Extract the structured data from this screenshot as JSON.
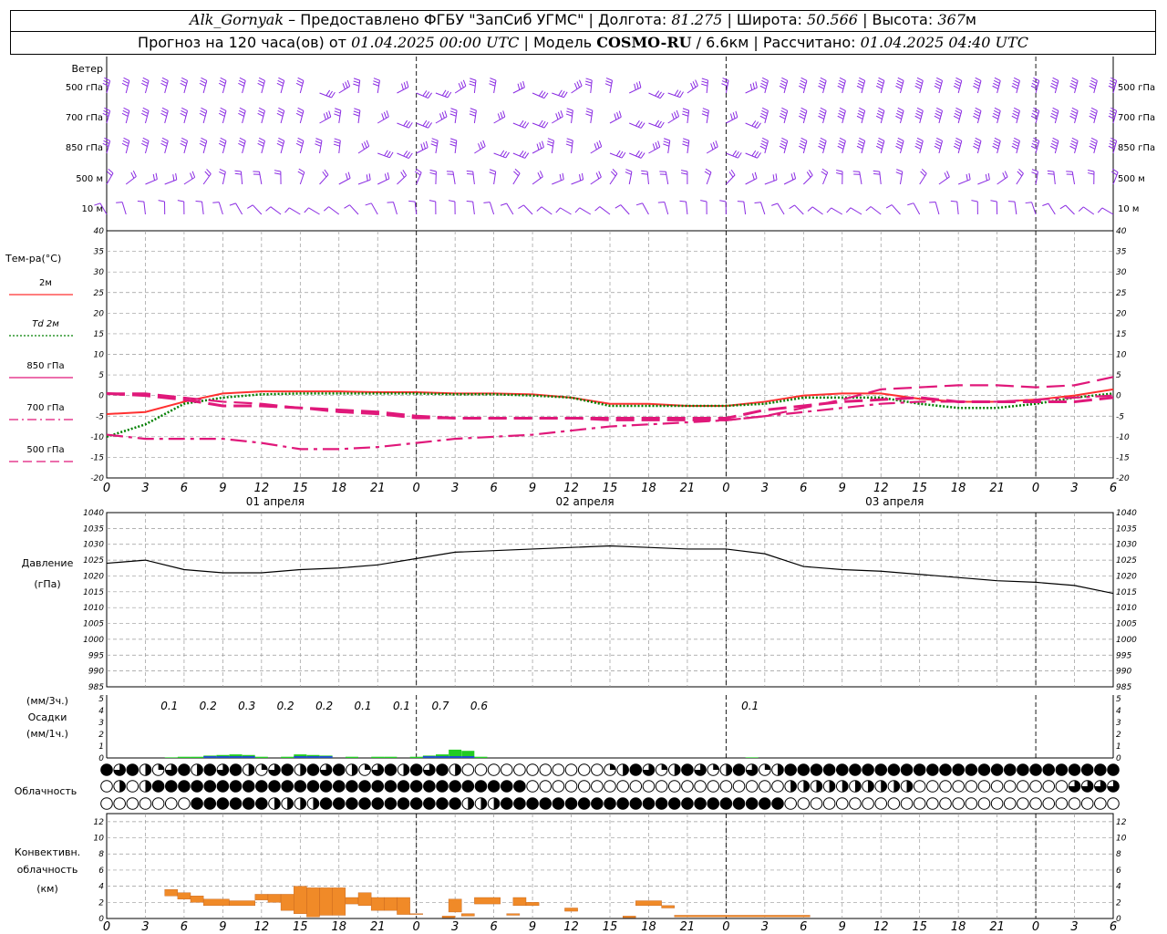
{
  "header": {
    "station": "Alk_Gornyak",
    "provider": "– Предоставлено ФГБУ \"ЗапСиб УГМС\" |",
    "lon_label": "Долгота:",
    "lon": "81.275",
    "lat_label": "| Широта:",
    "lat": "50.566",
    "alt_label": "| Высота:",
    "alt": "367",
    "alt_unit": "м",
    "forecast_label": "Прогноз на 120 часа(ов) от",
    "start_time": "01.04.2025 00:00 UTC",
    "model_label": "| Модель",
    "model": "COSMO-RU",
    "resolution": "/ 6.6км",
    "calc_label": "| Рассчитано:",
    "calc_time": "01.04.2025 04:40 UTC"
  },
  "wind_panel": {
    "title": "Ветер",
    "levels": [
      "500 гПа",
      "700 гПа",
      "850 гПа",
      "500 м",
      "10 м"
    ],
    "barb_color": "#8a2be2"
  },
  "hour_ticks": [
    "0",
    "3",
    "6",
    "9",
    "12",
    "15",
    "18",
    "21",
    "0",
    "3",
    "6",
    "9",
    "12",
    "15",
    "18",
    "21",
    "0",
    "3",
    "6",
    "9",
    "12",
    "15",
    "18",
    "21",
    "0",
    "3",
    "6"
  ],
  "dates": [
    "01 апреля",
    "02 апреля",
    "03 апреля"
  ],
  "temp_panel": {
    "title": "Тем-ра(°С)",
    "legend": [
      {
        "label": "2м",
        "color": "#ff3030",
        "style": "solid"
      },
      {
        "label": "Td 2м",
        "color": "#008000",
        "style": "dotted"
      },
      {
        "label": "850 гПа",
        "color": "#e0187a",
        "style": "solid"
      },
      {
        "label": "700 гПа",
        "color": "#e0187a",
        "style": "dashdot"
      },
      {
        "label": "500 гПа",
        "color": "#e0187a",
        "style": "dashed"
      }
    ],
    "y_ticks": [
      "40",
      "35",
      "30",
      "25",
      "20",
      "15",
      "10",
      "5",
      "0",
      "-5",
      "-10",
      "-15",
      "-20"
    ]
  },
  "pressure_panel": {
    "title": "Давление",
    "unit": "(гПа)",
    "y_ticks": [
      "1040",
      "1035",
      "1030",
      "1025",
      "1020",
      "1015",
      "1010",
      "1005",
      "1000",
      "995",
      "990",
      "985"
    ]
  },
  "precip_panel": {
    "unit3": "(мм/3ч.)",
    "title": "Осадки",
    "unit1": "(мм/1ч.)",
    "y_ticks": [
      "5",
      "4",
      "3",
      "2",
      "1",
      "0"
    ],
    "amounts": [
      {
        "label": "0.1",
        "hour": 5
      },
      {
        "label": "0.2",
        "hour": 8
      },
      {
        "label": "0.3",
        "hour": 11
      },
      {
        "label": "0.2",
        "hour": 14
      },
      {
        "label": "0.2",
        "hour": 17
      },
      {
        "label": "0.1",
        "hour": 20
      },
      {
        "label": "0.1",
        "hour": 23
      },
      {
        "label": "0.7",
        "hour": 26
      },
      {
        "label": "0.6",
        "hour": 29
      },
      {
        "label": "0.1",
        "hour": 50
      }
    ]
  },
  "cloud_panel": {
    "title": "Облачность"
  },
  "conv_panel": {
    "title1": "Конвективн.",
    "title2": "облачность",
    "unit": "(км)",
    "y_ticks": [
      "12",
      "10",
      "8",
      "6",
      "4",
      "2",
      "0"
    ],
    "bar_color": "#f08a28"
  },
  "chart_data": [
    {
      "type": "line",
      "title": "Тем-ра(°С)",
      "ylim": [
        -20,
        40
      ],
      "x_unit": "hours since 01.04.2025 00:00 UTC",
      "x": [
        0,
        3,
        6,
        9,
        12,
        15,
        18,
        21,
        24,
        27,
        30,
        33,
        36,
        39,
        42,
        45,
        48,
        51,
        54,
        57,
        60,
        63,
        66,
        69,
        72,
        75,
        78
      ],
      "series": [
        {
          "name": "2м",
          "values": [
            -4.5,
            -4,
            -1.5,
            0.5,
            1,
            1,
            1,
            0.8,
            0.8,
            0.5,
            0.5,
            0.3,
            -0.5,
            -2,
            -2,
            -2.5,
            -2.5,
            -1.5,
            0,
            0.5,
            0.5,
            -0.8,
            -1.5,
            -1.5,
            -1,
            0,
            1.5
          ]
        },
        {
          "name": "Td 2м",
          "values": [
            -10,
            -7,
            -2,
            -0.5,
            0.3,
            0.5,
            0.5,
            0.5,
            0.5,
            0.3,
            0.3,
            0,
            -0.5,
            -2.5,
            -2.5,
            -2.5,
            -2.5,
            -2,
            -0.5,
            -0.5,
            -0.5,
            -2,
            -3,
            -3,
            -2,
            -0.5,
            0.5
          ]
        },
        {
          "name": "850 гПа",
          "values": [
            0.5,
            0,
            -1,
            -2.5,
            -2.5,
            -3,
            -3.5,
            -4,
            -5,
            -5.5,
            -5.5,
            -5.5,
            -5.5,
            -5.5,
            -5.5,
            -5.5,
            -5.5,
            -3.5,
            -2.5,
            -1.5,
            -1,
            -0.5,
            -1.5,
            -1.5,
            -1.5,
            -1.5,
            -0.5
          ]
        },
        {
          "name": "700 гПа",
          "values": [
            -9.5,
            -10.5,
            -10.5,
            -10.5,
            -11.5,
            -13,
            -13,
            -12.5,
            -11.5,
            -10.5,
            -10,
            -9.5,
            -8.5,
            -7.5,
            -7,
            -6.5,
            -6,
            -5,
            -4,
            -3,
            -2,
            -1.5,
            -1.5,
            -1.5,
            -1,
            -0.5,
            0
          ]
        },
        {
          "name": "500 гПа",
          "values": [
            0.5,
            0.5,
            -0.5,
            -1.5,
            -2,
            -3,
            -4,
            -4.5,
            -5.5,
            -5.5,
            -5.5,
            -5.5,
            -5.5,
            -6,
            -6,
            -6,
            -6,
            -5,
            -3,
            -1,
            1.5,
            2,
            2.5,
            2.5,
            2,
            2.5,
            4.5
          ]
        }
      ]
    },
    {
      "type": "line",
      "title": "Давление",
      "ylabel": "(гПа)",
      "ylim": [
        985,
        1040
      ],
      "x": [
        0,
        3,
        6,
        9,
        12,
        15,
        18,
        21,
        24,
        27,
        30,
        33,
        36,
        39,
        42,
        45,
        48,
        51,
        54,
        57,
        60,
        63,
        66,
        69,
        72,
        75,
        78
      ],
      "values": [
        1024,
        1025,
        1022,
        1021,
        1021,
        1022,
        1022.5,
        1023.5,
        1025.5,
        1027.5,
        1028,
        1028.5,
        1029,
        1029.5,
        1029,
        1028.5,
        1028.5,
        1027,
        1023,
        1022,
        1021.5,
        1020.5,
        1019.5,
        1018.5,
        1018,
        1017,
        1014.5
      ]
    },
    {
      "type": "bar",
      "title": "Осадки",
      "ylabel": "(мм/1ч.)",
      "ylim": [
        0,
        5
      ],
      "hours": [
        5,
        6,
        7,
        8,
        9,
        10,
        11,
        12,
        14,
        15,
        16,
        17,
        19,
        21,
        22,
        24,
        25,
        26,
        27,
        28,
        29,
        50
      ],
      "values": [
        0.05,
        0.1,
        0.1,
        0.2,
        0.25,
        0.3,
        0.25,
        0.1,
        0.1,
        0.3,
        0.25,
        0.2,
        0.1,
        0.1,
        0.1,
        0.1,
        0.2,
        0.3,
        0.7,
        0.6,
        0.1,
        0.05
      ]
    },
    {
      "type": "bar",
      "title": "Конвективн. облачность",
      "ylabel": "(км)",
      "ylim": [
        0,
        13
      ],
      "segments": [
        [
          4.5,
          5.5,
          2.8,
          3.6
        ],
        [
          5.5,
          6.5,
          2.4,
          3.2
        ],
        [
          6.5,
          7.5,
          2.0,
          2.8
        ],
        [
          7.5,
          9.5,
          1.6,
          2.4
        ],
        [
          9.5,
          11.5,
          1.6,
          2.2
        ],
        [
          11.5,
          12.5,
          2.3,
          3.0
        ],
        [
          12.5,
          13.5,
          2.0,
          3.0
        ],
        [
          13.5,
          14.5,
          1.0,
          3.0
        ],
        [
          14.5,
          15.5,
          0.6,
          4.0
        ],
        [
          15.5,
          16.5,
          0.2,
          3.8
        ],
        [
          16.5,
          17.5,
          0.4,
          3.8
        ],
        [
          17.5,
          18.5,
          0.4,
          3.8
        ],
        [
          18.5,
          19.5,
          1.8,
          2.6
        ],
        [
          19.5,
          20.5,
          1.6,
          3.2
        ],
        [
          20.5,
          21.5,
          1.0,
          2.6
        ],
        [
          21.5,
          22.5,
          1.0,
          2.6
        ],
        [
          22.5,
          23.5,
          0.5,
          2.6
        ],
        [
          23.5,
          24.5,
          0.5,
          0.6
        ],
        [
          26.0,
          27.0,
          0.1,
          0.3
        ],
        [
          26.5,
          27.5,
          0.8,
          2.4
        ],
        [
          27.5,
          28.5,
          0.3,
          0.6
        ],
        [
          28.5,
          30.5,
          1.8,
          2.6
        ],
        [
          31.0,
          32.0,
          0.4,
          0.6
        ],
        [
          31.5,
          32.5,
          1.6,
          2.6
        ],
        [
          32.5,
          33.5,
          1.6,
          2.0
        ],
        [
          35.5,
          36.5,
          0.9,
          1.3
        ],
        [
          40.0,
          41.0,
          0.1,
          0.3
        ],
        [
          41.0,
          43.0,
          1.6,
          2.2
        ],
        [
          43.0,
          44.0,
          1.3,
          1.6
        ],
        [
          44.0,
          54.5,
          0.2,
          0.4
        ]
      ]
    }
  ]
}
